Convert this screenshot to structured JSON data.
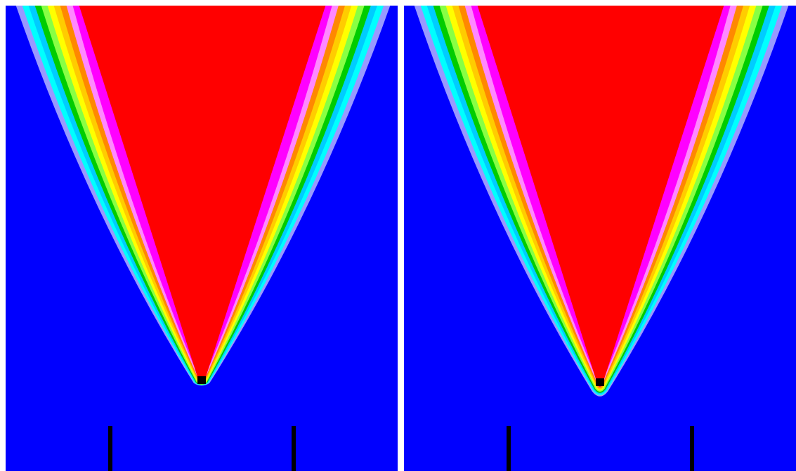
{
  "panels": [
    {
      "id": "left",
      "tip_shape": "sharp"
    },
    {
      "id": "right",
      "tip_shape": "rounded"
    }
  ],
  "colors": {
    "background": "#0000ff",
    "core": "#ff0000",
    "bands": [
      "#ff00ff",
      "#ff88ff",
      "#ff8800",
      "#ffcc00",
      "#ffff00",
      "#88ff44",
      "#00cc00",
      "#00ccff",
      "#00ffff",
      "#9999ff"
    ],
    "markers": "#000000"
  }
}
